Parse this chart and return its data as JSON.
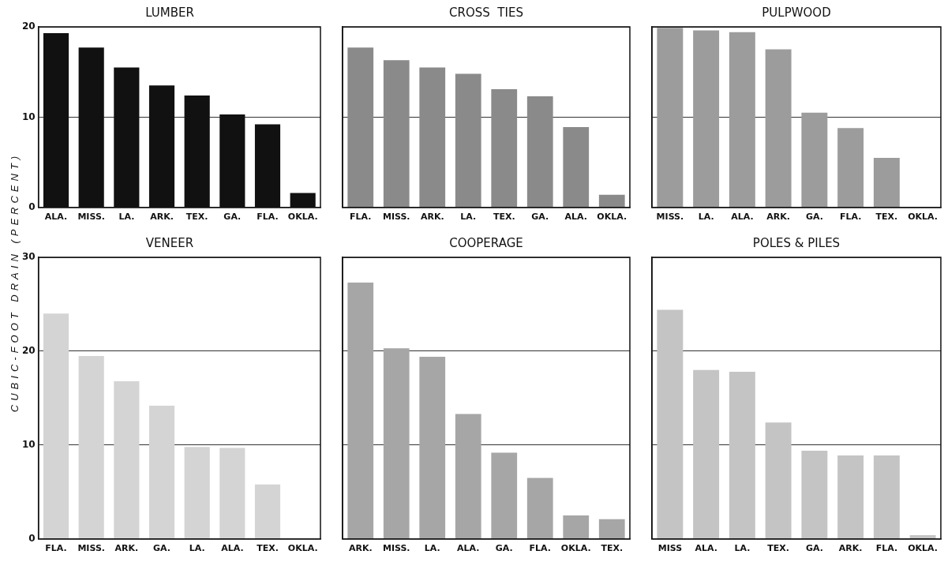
{
  "chart_data": [
    {
      "type": "bar",
      "title": "LUMBER",
      "ylabel": "CUBIC-FOOT DRAIN (PERCENT)",
      "categories": [
        "ALA.",
        "MISS.",
        "LA.",
        "ARK.",
        "TEX.",
        "GA.",
        "FLA.",
        "OKLA."
      ],
      "values": [
        19.3,
        17.7,
        15.5,
        13.5,
        12.4,
        10.3,
        9.2,
        1.6
      ],
      "color": "#111111",
      "ylim": [
        0,
        20
      ],
      "yticks": [
        0,
        10,
        20
      ],
      "grid": "y"
    },
    {
      "type": "bar",
      "title": "CROSS  TIES",
      "categories": [
        "FLA.",
        "MISS.",
        "ARK.",
        "LA.",
        "TEX.",
        "GA.",
        "ALA.",
        "OKLA."
      ],
      "values": [
        17.7,
        16.3,
        15.5,
        14.8,
        13.1,
        12.3,
        8.9,
        1.4
      ],
      "color": "#8a8a8a",
      "ylim": [
        0,
        20
      ],
      "yticks": [
        0,
        10,
        20
      ],
      "grid": "y",
      "tick_labels": "x"
    },
    {
      "type": "bar",
      "title": "PULPWOOD",
      "categories": [
        "MISS.",
        "LA.",
        "ALA.",
        "ARK.",
        "GA.",
        "FLA.",
        "TEX.",
        "OKLA."
      ],
      "values": [
        19.9,
        19.6,
        19.4,
        17.5,
        10.5,
        8.8,
        5.5,
        0
      ],
      "color": "#9c9c9c",
      "ylim": [
        0,
        20
      ],
      "yticks": [
        0,
        10,
        20
      ],
      "grid": "y",
      "tick_labels": "x"
    },
    {
      "type": "bar",
      "title": "VENEER",
      "categories": [
        "FLA.",
        "MISS.",
        "ARK.",
        "GA.",
        "LA.",
        "ALA.",
        "TEX.",
        "OKLA."
      ],
      "values": [
        24.0,
        19.5,
        16.8,
        14.2,
        9.8,
        9.7,
        5.8,
        0
      ],
      "color": "#d4d4d4",
      "ylim": [
        0,
        30
      ],
      "yticks": [
        0,
        10,
        20,
        30
      ],
      "grid": "y"
    },
    {
      "type": "bar",
      "title": "COOPERAGE",
      "categories": [
        "ARK.",
        "MISS.",
        "LA.",
        "ALA.",
        "GA.",
        "FLA.",
        "OKLA.",
        "TEX."
      ],
      "values": [
        27.3,
        20.3,
        19.4,
        13.3,
        9.2,
        6.5,
        2.5,
        2.1
      ],
      "color": "#a6a6a6",
      "ylim": [
        0,
        30
      ],
      "yticks": [
        0,
        10,
        20,
        30
      ],
      "grid": "y",
      "tick_labels": "x"
    },
    {
      "type": "bar",
      "title": "POLES & PILES",
      "categories": [
        "MISS",
        "ALA.",
        "LA.",
        "TEX.",
        "GA.",
        "ARK.",
        "FLA.",
        "OKLA."
      ],
      "values": [
        24.4,
        18.0,
        17.8,
        12.4,
        9.4,
        8.9,
        8.9,
        0.4
      ],
      "color": "#c4c4c4",
      "ylim": [
        0,
        30
      ],
      "yticks": [
        0,
        10,
        20,
        30
      ],
      "grid": "y",
      "tick_labels": "x"
    }
  ]
}
